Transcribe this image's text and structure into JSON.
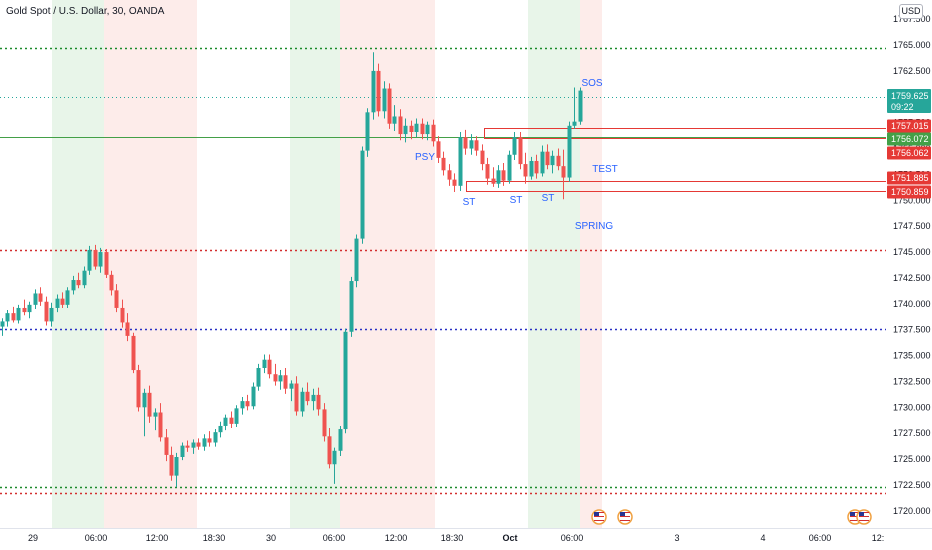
{
  "header": {
    "symbol_title": "Gold Spot / U.S. Dollar, 30, OANDA",
    "currency": "USD"
  },
  "colors": {
    "up": "#26a69a",
    "down": "#ef5350",
    "green_zone": "#e8f5e9",
    "red_zone": "#fdecea",
    "level_red": "#e53935",
    "level_green": "#43a047",
    "dotted_green": "#1b8a2b",
    "dotted_red": "#d32f2f",
    "dotted_blue": "#2b32c4",
    "annotation": "#2962ff"
  },
  "chart_data": {
    "type": "candlestick",
    "symbol": "Gold Spot / U.S. Dollar",
    "interval": "30",
    "source": "OANDA",
    "ylim": [
      1719.5,
      1768.0
    ],
    "y_ticks": [
      1720.0,
      1722.5,
      1725.0,
      1727.5,
      1730.0,
      1732.5,
      1735.0,
      1737.5,
      1740.0,
      1742.5,
      1745.0,
      1747.5,
      1750.0,
      1752.5,
      1755.0,
      1757.5,
      1760.0,
      1762.5,
      1765.0,
      1767.5
    ],
    "y_tick_labels": [
      "1720.000",
      "1722.500",
      "1725.000",
      "1727.500",
      "1730.000",
      "1732.500",
      "1735.000",
      "1737.500",
      "1740.000",
      "1742.500",
      "1745.000",
      "1747.500",
      "1750.000",
      "1752.500",
      "1755.000",
      "1757.500",
      "1760.000",
      "1762.500",
      "1765.000",
      "1767.500"
    ],
    "x_tick_labels": [
      "29",
      "06:00",
      "12:00",
      "18:30",
      "30",
      "06:00",
      "12:00",
      "18:30",
      "Oct",
      "06:00",
      "3",
      "4",
      "06:00",
      "12:"
    ],
    "x_tick_positions": [
      33,
      96,
      157,
      214,
      271,
      334,
      396,
      452,
      510,
      572,
      677,
      763,
      820,
      878
    ],
    "candles": [
      [
        1737.8,
        1738.6,
        1736.9,
        1738.3
      ],
      [
        1738.3,
        1739.4,
        1737.8,
        1739.1
      ],
      [
        1739.1,
        1739.7,
        1738.2,
        1738.4
      ],
      [
        1738.4,
        1739.9,
        1738.1,
        1739.6
      ],
      [
        1739.6,
        1740.4,
        1738.9,
        1739.2
      ],
      [
        1739.2,
        1740.2,
        1738.6,
        1739.9
      ],
      [
        1739.9,
        1741.4,
        1739.5,
        1741.0
      ],
      [
        1741.0,
        1741.6,
        1739.8,
        1740.2
      ],
      [
        1740.2,
        1740.7,
        1737.9,
        1738.3
      ],
      [
        1738.3,
        1740.1,
        1737.8,
        1739.6
      ],
      [
        1739.6,
        1740.9,
        1739.2,
        1740.5
      ],
      [
        1740.5,
        1741.1,
        1739.6,
        1739.9
      ],
      [
        1739.9,
        1741.6,
        1739.6,
        1741.3
      ],
      [
        1741.3,
        1742.7,
        1740.9,
        1742.3
      ],
      [
        1742.3,
        1743.0,
        1741.5,
        1741.8
      ],
      [
        1741.8,
        1743.6,
        1741.5,
        1743.2
      ],
      [
        1743.2,
        1745.6,
        1742.8,
        1745.2
      ],
      [
        1745.2,
        1745.7,
        1743.3,
        1743.6
      ],
      [
        1743.6,
        1745.4,
        1743.0,
        1745.0
      ],
      [
        1745.0,
        1745.3,
        1742.5,
        1742.8
      ],
      [
        1742.8,
        1743.2,
        1740.8,
        1741.3
      ],
      [
        1741.3,
        1741.9,
        1739.2,
        1739.6
      ],
      [
        1739.6,
        1740.4,
        1737.7,
        1738.2
      ],
      [
        1738.2,
        1739.1,
        1736.4,
        1736.9
      ],
      [
        1736.9,
        1737.2,
        1733.3,
        1733.6
      ],
      [
        1733.6,
        1734.1,
        1729.6,
        1730.0
      ],
      [
        1730.0,
        1731.8,
        1727.2,
        1731.4
      ],
      [
        1731.4,
        1732.1,
        1728.5,
        1729.1
      ],
      [
        1729.1,
        1729.9,
        1727.8,
        1729.5
      ],
      [
        1729.5,
        1730.4,
        1726.7,
        1727.1
      ],
      [
        1727.1,
        1727.9,
        1724.8,
        1725.4
      ],
      [
        1725.4,
        1726.2,
        1722.9,
        1723.4
      ],
      [
        1723.4,
        1725.6,
        1722.3,
        1725.2
      ],
      [
        1725.2,
        1726.6,
        1724.9,
        1726.3
      ],
      [
        1726.3,
        1726.8,
        1725.7,
        1726.1
      ],
      [
        1726.1,
        1726.9,
        1725.5,
        1726.6
      ],
      [
        1726.6,
        1727.0,
        1725.9,
        1726.2
      ],
      [
        1726.2,
        1727.4,
        1725.8,
        1727.0
      ],
      [
        1727.0,
        1727.7,
        1726.2,
        1726.6
      ],
      [
        1726.6,
        1727.9,
        1726.2,
        1727.6
      ],
      [
        1727.6,
        1728.6,
        1727.1,
        1728.2
      ],
      [
        1728.2,
        1729.3,
        1727.8,
        1729.0
      ],
      [
        1729.0,
        1729.6,
        1728.0,
        1728.4
      ],
      [
        1728.4,
        1730.2,
        1728.1,
        1729.9
      ],
      [
        1729.9,
        1731.0,
        1729.3,
        1730.6
      ],
      [
        1730.6,
        1731.2,
        1729.7,
        1730.1
      ],
      [
        1730.1,
        1732.4,
        1729.8,
        1732.0
      ],
      [
        1732.0,
        1734.2,
        1731.6,
        1733.8
      ],
      [
        1733.8,
        1735.1,
        1733.3,
        1734.6
      ],
      [
        1734.6,
        1735.1,
        1732.8,
        1733.2
      ],
      [
        1733.2,
        1734.2,
        1732.1,
        1732.5
      ],
      [
        1732.5,
        1733.6,
        1731.7,
        1733.1
      ],
      [
        1733.1,
        1733.8,
        1731.3,
        1731.8
      ],
      [
        1731.8,
        1732.6,
        1730.6,
        1732.3
      ],
      [
        1732.3,
        1733.0,
        1729.2,
        1729.6
      ],
      [
        1729.6,
        1731.9,
        1729.1,
        1731.5
      ],
      [
        1731.5,
        1732.4,
        1730.2,
        1730.6
      ],
      [
        1730.6,
        1731.8,
        1729.7,
        1731.2
      ],
      [
        1731.2,
        1731.9,
        1729.2,
        1729.8
      ],
      [
        1729.8,
        1730.4,
        1726.7,
        1727.2
      ],
      [
        1727.2,
        1728.0,
        1724.1,
        1724.5
      ],
      [
        1724.5,
        1726.1,
        1722.6,
        1725.8
      ],
      [
        1725.8,
        1728.2,
        1725.3,
        1727.9
      ],
      [
        1727.9,
        1737.6,
        1727.5,
        1737.3
      ],
      [
        1737.3,
        1742.6,
        1736.8,
        1742.2
      ],
      [
        1742.2,
        1746.7,
        1741.6,
        1746.3
      ],
      [
        1746.3,
        1755.2,
        1745.8,
        1754.8
      ],
      [
        1754.8,
        1758.9,
        1754.2,
        1758.5
      ],
      [
        1758.5,
        1764.3,
        1757.8,
        1762.5
      ],
      [
        1762.5,
        1763.2,
        1758.1,
        1758.6
      ],
      [
        1758.6,
        1761.5,
        1757.9,
        1760.8
      ],
      [
        1760.8,
        1761.3,
        1756.9,
        1757.4
      ],
      [
        1757.4,
        1759.2,
        1756.7,
        1758.1
      ],
      [
        1758.1,
        1758.8,
        1755.8,
        1756.4
      ],
      [
        1756.4,
        1757.9,
        1755.6,
        1757.2
      ],
      [
        1757.2,
        1757.7,
        1755.9,
        1756.6
      ],
      [
        1756.6,
        1757.9,
        1756.1,
        1757.4
      ],
      [
        1757.4,
        1757.9,
        1755.9,
        1756.4
      ],
      [
        1756.4,
        1757.6,
        1755.8,
        1757.3
      ],
      [
        1757.3,
        1757.8,
        1755.2,
        1755.7
      ],
      [
        1755.7,
        1756.2,
        1753.6,
        1754.1
      ],
      [
        1754.1,
        1754.7,
        1752.4,
        1752.9
      ],
      [
        1752.9,
        1753.5,
        1751.4,
        1752.0
      ],
      [
        1752.0,
        1752.6,
        1750.8,
        1751.4
      ],
      [
        1751.4,
        1756.6,
        1750.9,
        1756.1
      ],
      [
        1756.1,
        1756.8,
        1754.4,
        1755.0
      ],
      [
        1755.0,
        1756.4,
        1754.4,
        1755.8
      ],
      [
        1755.8,
        1756.2,
        1754.3,
        1754.8
      ],
      [
        1754.8,
        1755.4,
        1752.9,
        1753.5
      ],
      [
        1753.5,
        1754.1,
        1751.5,
        1752.1
      ],
      [
        1752.1,
        1753.2,
        1751.3,
        1751.6
      ],
      [
        1751.6,
        1753.4,
        1751.2,
        1752.9
      ],
      [
        1752.9,
        1753.6,
        1751.4,
        1751.9
      ],
      [
        1751.9,
        1754.8,
        1751.6,
        1754.4
      ],
      [
        1754.4,
        1756.6,
        1753.9,
        1756.1
      ],
      [
        1756.1,
        1756.6,
        1753.0,
        1753.5
      ],
      [
        1753.5,
        1754.6,
        1751.6,
        1752.3
      ],
      [
        1752.3,
        1754.2,
        1752.0,
        1753.8
      ],
      [
        1753.8,
        1754.4,
        1752.1,
        1752.6
      ],
      [
        1752.6,
        1755.3,
        1752.3,
        1754.7
      ],
      [
        1754.7,
        1755.4,
        1753.0,
        1753.4
      ],
      [
        1753.4,
        1754.8,
        1752.6,
        1754.3
      ],
      [
        1754.3,
        1755.0,
        1752.9,
        1753.3
      ],
      [
        1753.3,
        1754.9,
        1750.1,
        1752.2
      ],
      [
        1752.2,
        1757.6,
        1751.8,
        1757.2
      ],
      [
        1757.2,
        1760.9,
        1756.9,
        1757.6
      ],
      [
        1757.6,
        1760.9,
        1757.3,
        1760.6
      ]
    ],
    "shaded_zones": [
      {
        "type": "green",
        "x0_label": "29",
        "start": "03:00",
        "end": "06:00"
      },
      {
        "type": "red",
        "x0_label": "29",
        "start": "06:00",
        "end": "18:30"
      },
      {
        "type": "green",
        "x0_label": "30",
        "start": "03:00",
        "end": "06:00"
      },
      {
        "type": "red",
        "x0_label": "30",
        "start": "06:00",
        "end": "18:30"
      },
      {
        "type": "green",
        "x0_label": "Oct",
        "start": "03:00",
        "end": "06:00"
      },
      {
        "type": "red",
        "x0_label": "Oct",
        "start": "06:00",
        "end": "07:00"
      }
    ],
    "horizontal_levels": [
      {
        "price": 1764.7,
        "style": "dotted",
        "color": "dotted_green"
      },
      {
        "price": 1760.0,
        "style": "dotted-thin",
        "color": "up"
      },
      {
        "price": 1756.072,
        "style": "solid",
        "color": "level_green",
        "full": true
      },
      {
        "price": 1745.2,
        "style": "dotted",
        "color": "dotted_red"
      },
      {
        "price": 1737.6,
        "style": "dotted",
        "color": "dotted_blue"
      },
      {
        "price": 1722.3,
        "style": "dotted",
        "color": "dotted_green"
      },
      {
        "price": 1721.7,
        "style": "dotted",
        "color": "dotted_red"
      }
    ],
    "box_levels": [
      1757.015,
      1756.062,
      1751.885,
      1750.859
    ],
    "annotations": [
      "SOS",
      "PSY",
      "TEST",
      "ST",
      "ST",
      "ST",
      "SPRING"
    ],
    "price_labels": [
      {
        "value": "1759.625",
        "sub": "09:22",
        "color": "up"
      },
      {
        "value": "1757.015",
        "color": "level_red"
      },
      {
        "value": "1756.072",
        "color": "level_green"
      },
      {
        "value": "1756.062",
        "color": "level_red"
      },
      {
        "value": "1751.885",
        "color": "level_red"
      },
      {
        "value": "1750.859",
        "color": "level_red"
      }
    ]
  }
}
